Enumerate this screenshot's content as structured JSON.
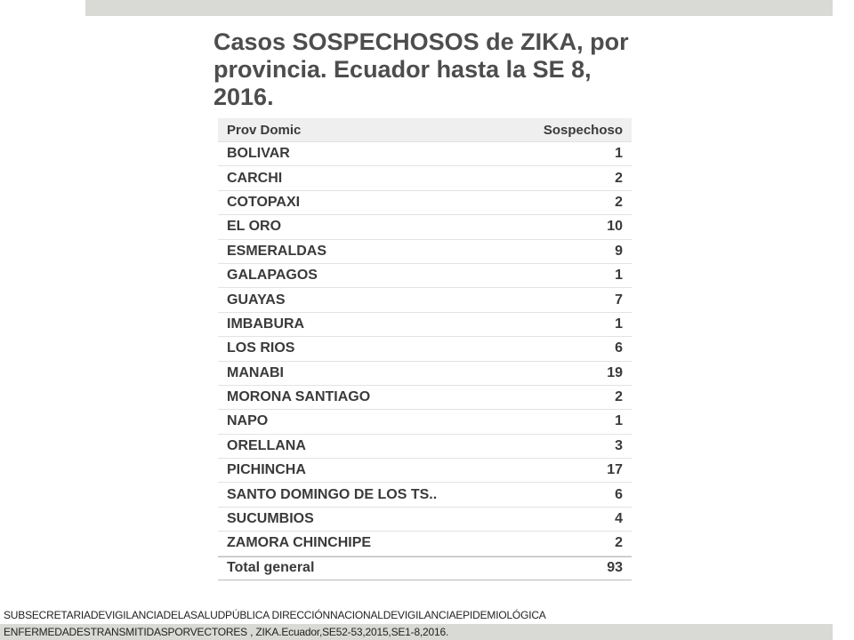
{
  "title": "Casos SOSPECHOSOS de ZIKA, por provincia. Ecuador hasta la SE 8, 2016.",
  "table": {
    "header": [
      "Prov Domic",
      "Sospechoso"
    ],
    "rows": [
      [
        "BOLIVAR",
        1
      ],
      [
        "CARCHI",
        2
      ],
      [
        "COTOPAXI",
        2
      ],
      [
        "EL ORO",
        10
      ],
      [
        "ESMERALDAS",
        9
      ],
      [
        "GALAPAGOS",
        1
      ],
      [
        "GUAYAS",
        7
      ],
      [
        "IMBABURA",
        1
      ],
      [
        "LOS RIOS",
        6
      ],
      [
        "MANABI",
        19
      ],
      [
        "MORONA SANTIAGO",
        2
      ],
      [
        "NAPO",
        1
      ],
      [
        "ORELLANA",
        3
      ],
      [
        "PICHINCHA",
        17
      ],
      [
        "SANTO DOMINGO DE LOS TS..",
        6
      ],
      [
        "SUCUMBIOS",
        4
      ],
      [
        "ZAMORA CHINCHIPE",
        2
      ]
    ],
    "total": [
      "Total general",
      93
    ]
  },
  "footer": [
    "SUBSECRETARIADEVIGILANCIADELASALUDPÚBLICA DIRECCIÓNNACIONALDEVIGILANCIAEPIDEMIOLÓGICA",
    "ENFERMEDADESTRANSMITIDASPORVECTORES , ZIKA.Ecuador,SE52-53,2015,SE1-8,2016."
  ]
}
